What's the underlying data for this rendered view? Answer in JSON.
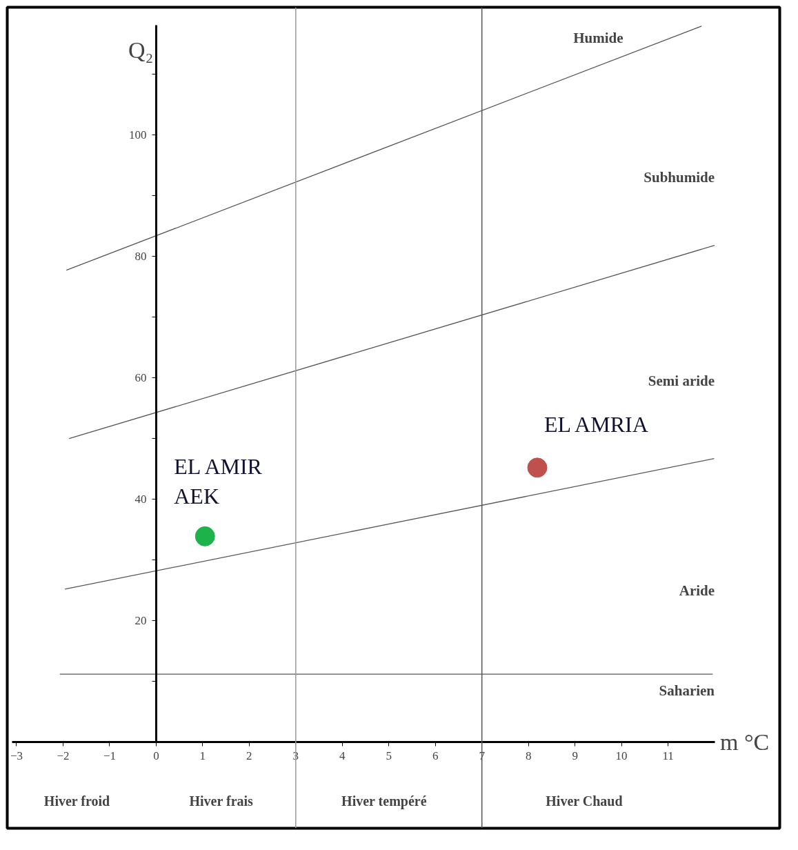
{
  "chart_data": {
    "type": "scatter",
    "xlabel": "m °C",
    "ylabel": "Q₂",
    "xlim": [
      -3.1,
      12
    ],
    "ylim": [
      0,
      118
    ],
    "xticks": [
      -3,
      -2,
      -1,
      0,
      1,
      2,
      3,
      4,
      5,
      6,
      7,
      8,
      9,
      10,
      11
    ],
    "yticks": [
      {
        "value": 10,
        "label": null
      },
      20,
      {
        "value": 30,
        "label": null
      },
      40,
      {
        "value": 50,
        "label": null
      },
      60,
      {
        "value": 70,
        "label": null
      },
      80,
      {
        "value": 90,
        "label": null
      },
      100,
      {
        "value": 110,
        "label": null
      }
    ],
    "grid": false,
    "series": [
      {
        "type": "line",
        "marker": "none",
        "color": "#555555",
        "x": [
          -1.93,
          11.72
        ],
        "values": [
          77.7,
          117.9
        ]
      },
      {
        "type": "line",
        "marker": "none",
        "color": "#555555",
        "x": [
          -1.87,
          12.0
        ],
        "values": [
          50.0,
          81.8
        ]
      },
      {
        "type": "line",
        "marker": "none",
        "color": "#555555",
        "x": [
          -1.96,
          11.99
        ],
        "values": [
          25.2,
          46.7
        ]
      },
      {
        "type": "line",
        "marker": "none",
        "color": "#555555",
        "x": [
          -2.07,
          11.96
        ],
        "values": [
          11.2,
          11.2
        ]
      },
      {
        "marker": "circle",
        "name": "EL AMIR\nAEK",
        "color": "#1db24a",
        "x": [
          1.05
        ],
        "values": [
          33.9
        ]
      },
      {
        "marker": "circle",
        "name": "EL AMRIA",
        "color": "#c0504d",
        "x": [
          8.19
        ],
        "values": [
          45.2
        ]
      }
    ],
    "ref_lines": [
      {
        "axis": "x",
        "value": 3,
        "color": "#999999"
      },
      {
        "axis": "x",
        "value": 7,
        "color": "#555555"
      }
    ],
    "annotations": [
      "Humide",
      "Subhumide",
      "Semi aride",
      "Aride",
      "Saharien",
      "Hiver froid",
      "Hiver frais",
      "Hiver tempéré",
      "Hiver Chaud"
    ]
  }
}
